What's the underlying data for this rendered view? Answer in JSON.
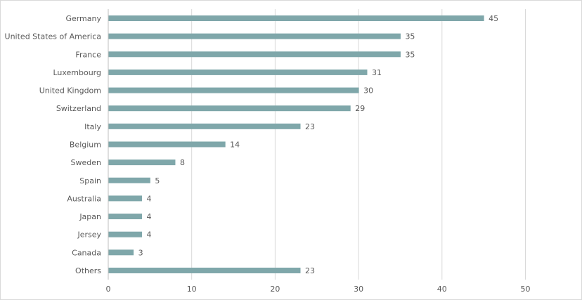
{
  "chart_data": {
    "type": "bar",
    "orientation": "horizontal",
    "title": "",
    "xlabel": "",
    "ylabel": "",
    "categories": [
      "Germany",
      "United States of America",
      "France",
      "Luxembourg",
      "United Kingdom",
      "Switzerland",
      "Italy",
      "Belgium",
      "Sweden",
      "Spain",
      "Australia",
      "Japan",
      "Jersey",
      "Canada",
      "Others"
    ],
    "values": [
      45,
      35,
      35,
      31,
      30,
      29,
      23,
      14,
      8,
      5,
      4,
      4,
      4,
      3,
      23
    ],
    "xlim": [
      0,
      55
    ],
    "xticks": [
      0,
      10,
      20,
      30,
      40,
      50
    ],
    "grid": "vertical",
    "data_labels": true,
    "bar_color": "#7fa7aa",
    "grid_color": "#d9d9d9",
    "text_color": "#595959"
  }
}
